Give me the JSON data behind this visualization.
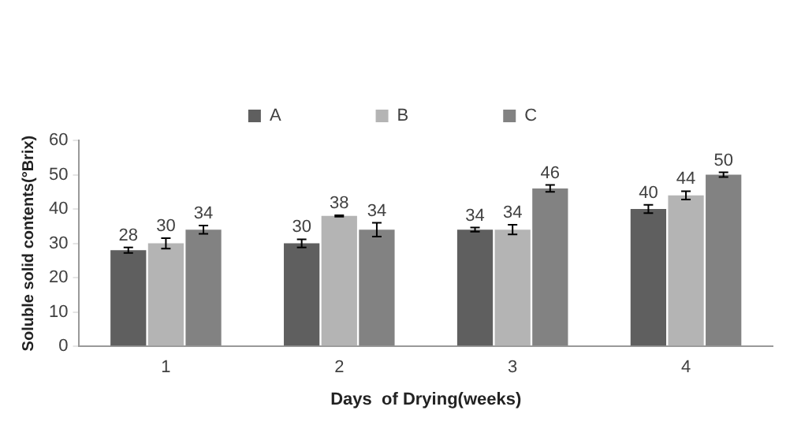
{
  "chart_data": {
    "type": "bar",
    "xlabel": "Days  of Drying(weeks)",
    "ylabel": "Soluble solid contents(°Brix)",
    "categories": [
      "1",
      "2",
      "3",
      "4"
    ],
    "series": [
      {
        "name": "A",
        "color": "#5f5f5f",
        "values": [
          28,
          30,
          34,
          40
        ],
        "errors": [
          0.8,
          1.2,
          0.6,
          1.2
        ]
      },
      {
        "name": "B",
        "color": "#b4b4b4",
        "values": [
          30,
          38,
          34,
          44
        ],
        "errors": [
          1.5,
          0.2,
          1.4,
          1.2
        ]
      },
      {
        "name": "C",
        "color": "#828282",
        "values": [
          34,
          34,
          46,
          50
        ],
        "errors": [
          1.2,
          2,
          1,
          0.7
        ]
      }
    ],
    "ylim": [
      0,
      60
    ],
    "yticks": [
      0,
      10,
      20,
      30,
      40,
      50,
      60
    ],
    "grid": false,
    "legend": "top",
    "data_labels": true
  }
}
